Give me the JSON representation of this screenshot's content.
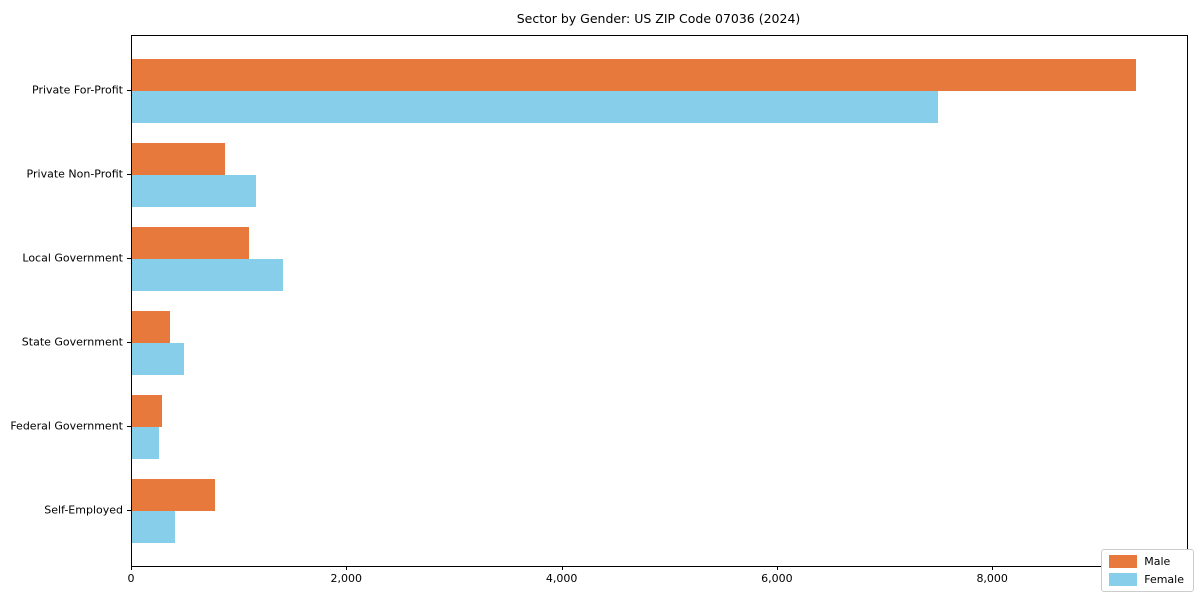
{
  "figure": {
    "background": "#ffffff"
  },
  "chart_data": {
    "type": "bar",
    "orientation": "horizontal",
    "title": "Sector by Gender: US ZIP Code 07036 (2024)",
    "categories": [
      "Private For-Profit",
      "Private Non-Profit",
      "Local Government",
      "State Government",
      "Federal Government",
      "Self-Employed"
    ],
    "series": [
      {
        "name": "Male",
        "color": "#e8793c",
        "values": [
          9330,
          860,
          1090,
          350,
          280,
          770
        ]
      },
      {
        "name": "Female",
        "color": "#87ceeb",
        "values": [
          7490,
          1150,
          1400,
          480,
          250,
          400
        ]
      }
    ],
    "xlabel": "",
    "ylabel": "",
    "xlim": [
      0,
      9800
    ],
    "xticks": [
      0,
      2000,
      4000,
      6000,
      8000
    ],
    "xtick_labels": [
      "0",
      "2,000",
      "4,000",
      "6,000",
      "8,000"
    ],
    "grid": false,
    "legend": {
      "position": "lower right",
      "entries": [
        "Male",
        "Female"
      ]
    }
  }
}
